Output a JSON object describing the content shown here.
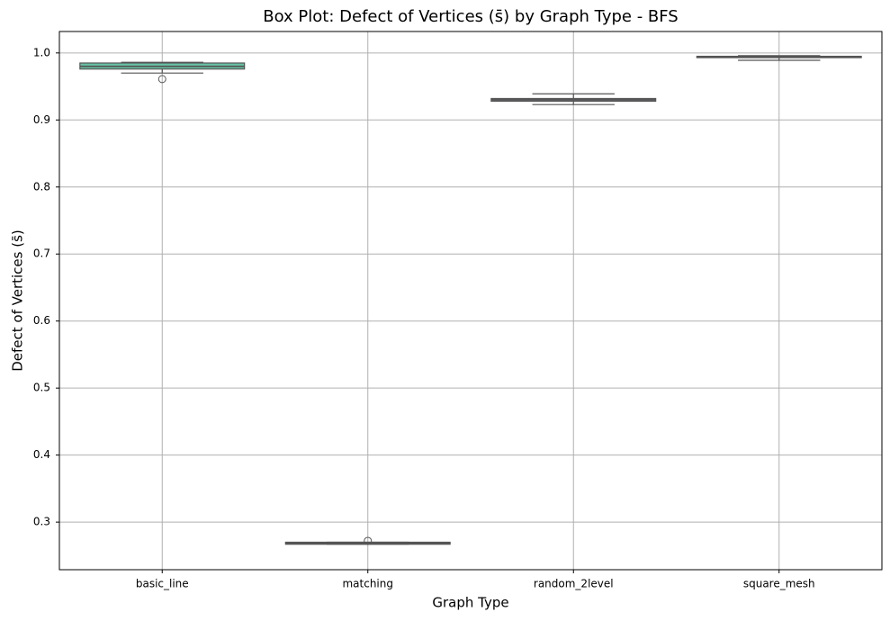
{
  "chart_data": {
    "type": "box",
    "title": "Box Plot: Defect of Vertices (s̄) by Graph Type - BFS",
    "x_label": "Graph Type",
    "y_label": "Defect of Vertices (s̄)",
    "categories": [
      "basic_line",
      "matching",
      "random_2level",
      "square_mesh"
    ],
    "colors": [
      "#66c2a5",
      "#fc8d62",
      "#8da0cb",
      "#e78ac3"
    ],
    "boxes": [
      {
        "whislo": 0.97,
        "q1": 0.976,
        "med": 0.98,
        "q3": 0.985,
        "whishi": 0.986,
        "fliers": [
          0.961
        ]
      },
      {
        "whislo": 0.267,
        "q1": 0.267,
        "med": 0.268,
        "q3": 0.27,
        "whishi": 0.27,
        "fliers": [
          0.272
        ]
      },
      {
        "whislo": 0.923,
        "q1": 0.928,
        "med": 0.93,
        "q3": 0.932,
        "whishi": 0.939
      },
      {
        "whislo": 0.989,
        "q1": 0.993,
        "med": 0.994,
        "q3": 0.995,
        "whishi": 0.996
      }
    ],
    "ylim": [
      0.229,
      1.032
    ],
    "yticks": [
      0.3,
      0.4,
      0.5,
      0.6,
      0.7,
      0.8,
      0.9,
      {
        "value": 1,
        "label": "1.0"
      }
    ],
    "grid": true
  }
}
